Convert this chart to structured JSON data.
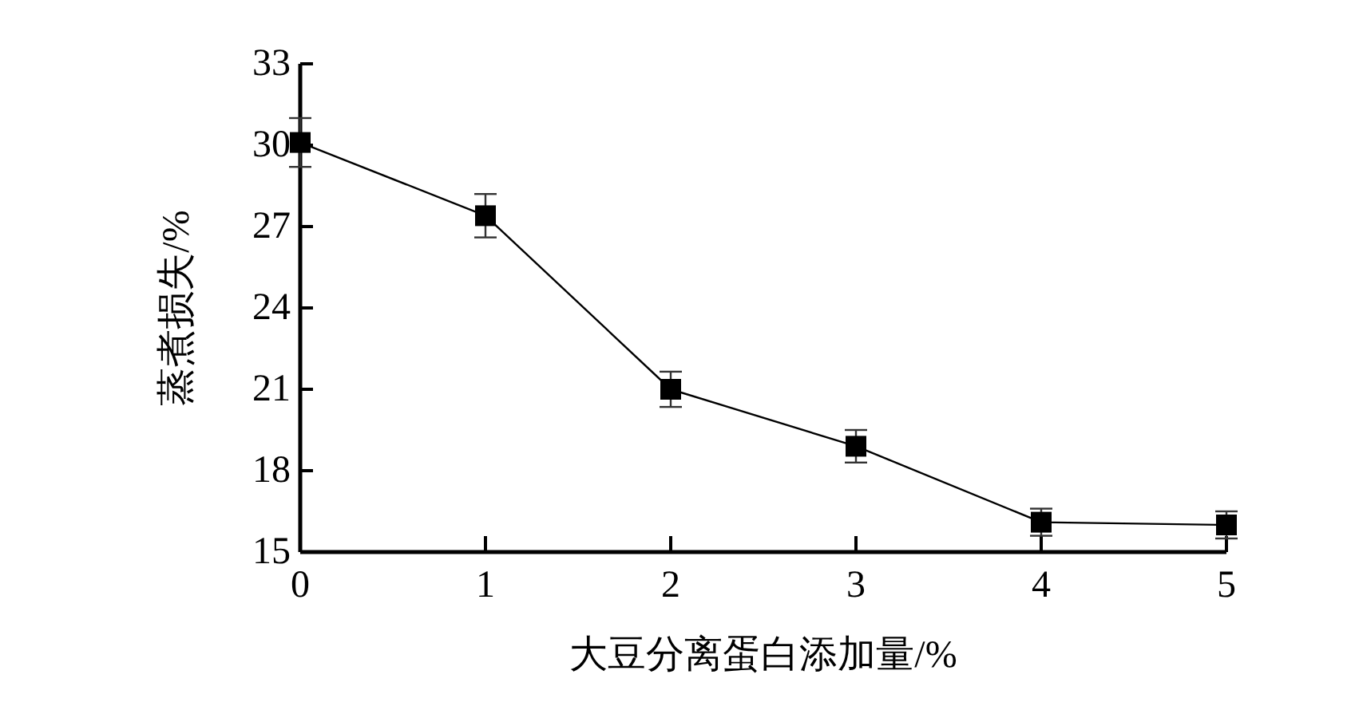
{
  "chart_data": {
    "type": "line",
    "xlabel": "大豆分离蛋白添加量/%",
    "ylabel": "蒸煮损失/%",
    "x": [
      0,
      1,
      2,
      3,
      4,
      5
    ],
    "series": [
      {
        "color": "#000000",
        "values": [
          30.1,
          27.4,
          21.0,
          18.9,
          16.1,
          16.0
        ],
        "errors": [
          0.9,
          0.8,
          0.65,
          0.6,
          0.5,
          0.5
        ]
      }
    ],
    "xlim": [
      0,
      5
    ],
    "xticks": [
      0,
      1,
      2,
      3,
      4,
      5
    ],
    "ylim": [
      15,
      33
    ],
    "yticks": [
      15,
      18,
      21,
      24,
      27,
      30,
      33
    ],
    "marker": "square",
    "line_style": "solid"
  }
}
